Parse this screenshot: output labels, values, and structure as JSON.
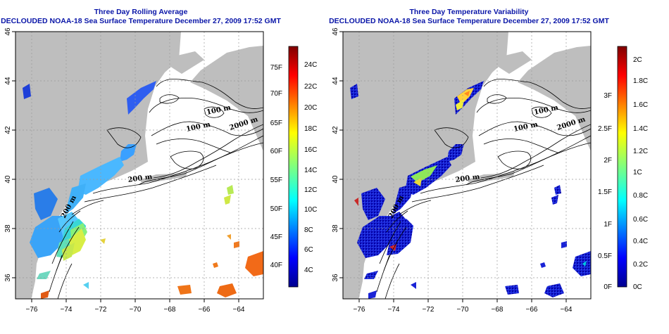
{
  "left_panel": {
    "title": "Three Day Rolling Average",
    "subtitle": "DECLOUDED NOAA-18 Sea Surface Temperature December 27, 2009 17:52 GMT",
    "colorbar_celsius": [
      "24C",
      "22C",
      "20C",
      "18C",
      "16C",
      "14C",
      "12C",
      "10C",
      "8C",
      "6C",
      "4C"
    ],
    "colorbar_fahrenheit": [
      "75F",
      "70F",
      "65F",
      "60F",
      "55F",
      "50F",
      "45F",
      "40F"
    ]
  },
  "right_panel": {
    "title": "Three Day Temperature Variability",
    "subtitle": "DECLOUDED NOAA-18 Sea Surface Temperature December 27, 2009 17:52 GMT",
    "colorbar_celsius": [
      "2C",
      "1.8C",
      "1.6C",
      "1.4C",
      "1.2C",
      "1C",
      "0.8C",
      "0.6C",
      "0.4C",
      "0.2C",
      "0C"
    ],
    "colorbar_fahrenheit": [
      "3F",
      "2.5F",
      "2F",
      "1.5F",
      "1F",
      "0.5F",
      "0F"
    ]
  },
  "lon_ticks": [
    "−76",
    "−74",
    "−72",
    "−70",
    "−68",
    "−66",
    "−64"
  ],
  "lat_ticks": [
    "46",
    "44",
    "42",
    "40",
    "38",
    "36"
  ],
  "isobath_labels": [
    "100 m",
    "100 m",
    "2000 m",
    "200 m",
    "200 m"
  ],
  "colors": {
    "title": "#0a16a8",
    "land": "#bebebe",
    "water": "#ffffff"
  }
}
